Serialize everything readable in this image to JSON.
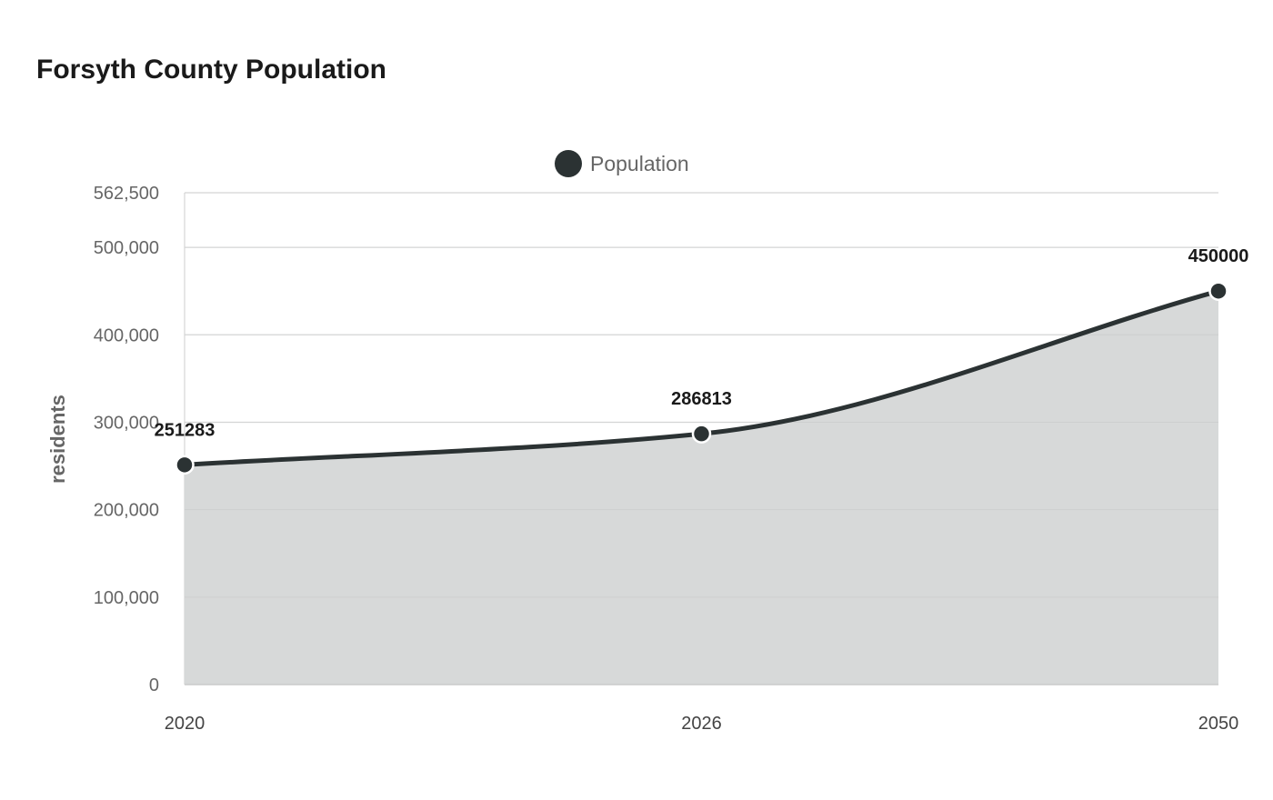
{
  "chart_data": {
    "type": "area",
    "title": "Forsyth County Population",
    "categories": [
      "2020",
      "2026",
      "2050"
    ],
    "series": [
      {
        "name": "Population",
        "values": [
          251283,
          286813,
          450000
        ],
        "color": "#2b3233",
        "fill": "#d5d7d7"
      }
    ],
    "data_labels": [
      "251283",
      "286813",
      "450000"
    ],
    "ylabel": "residents",
    "xlabel": "",
    "ylim": [
      0,
      562500
    ],
    "yticks": [
      0,
      100000,
      200000,
      300000,
      400000,
      500000,
      562500
    ],
    "ytick_labels": [
      "0",
      "100,000",
      "200,000",
      "300,000",
      "400,000",
      "500,000",
      "562,500"
    ],
    "grid": true,
    "legend": "top-center",
    "smooth": true
  }
}
